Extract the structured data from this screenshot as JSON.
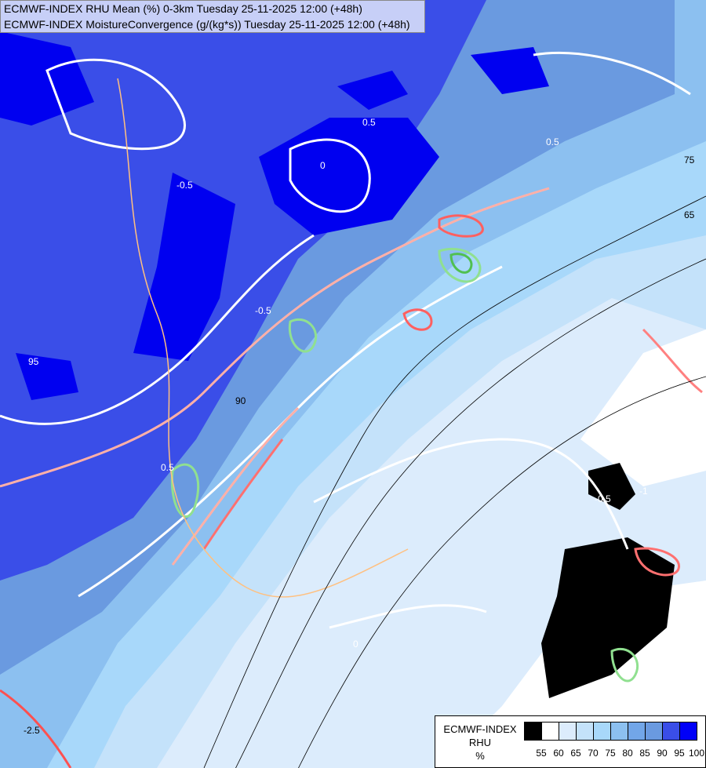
{
  "header": {
    "line1": "ECMWF-INDEX RHU Mean (%) 0-3km Tuesday 25-11-2025 12:00 (+48h)",
    "line2": "ECMWF-INDEX MoistureConvergence (g/(kg*s)) Tuesday 25-11-2025 12:00 (+48h)"
  },
  "legend": {
    "title_line1": "ECMWF-INDEX",
    "title_line2": "RHU",
    "unit": "%",
    "colors": [
      "#000000",
      "#ffffff",
      "#dcecfc",
      "#c4e2fa",
      "#a8d8fa",
      "#8cc0f0",
      "#72a6e8",
      "#6a9ae0",
      "#3a4ee8",
      "#0000f8"
    ],
    "ticks": [
      "55",
      "60",
      "65",
      "70",
      "75",
      "80",
      "85",
      "90",
      "95",
      "100"
    ]
  },
  "contour_labels": [
    "-0.5",
    "0.5",
    "0",
    "-0.5",
    "0.5",
    "0",
    "90",
    "65",
    "75",
    "-0.5",
    "0.5",
    "-2.5",
    "-1",
    "95"
  ]
}
